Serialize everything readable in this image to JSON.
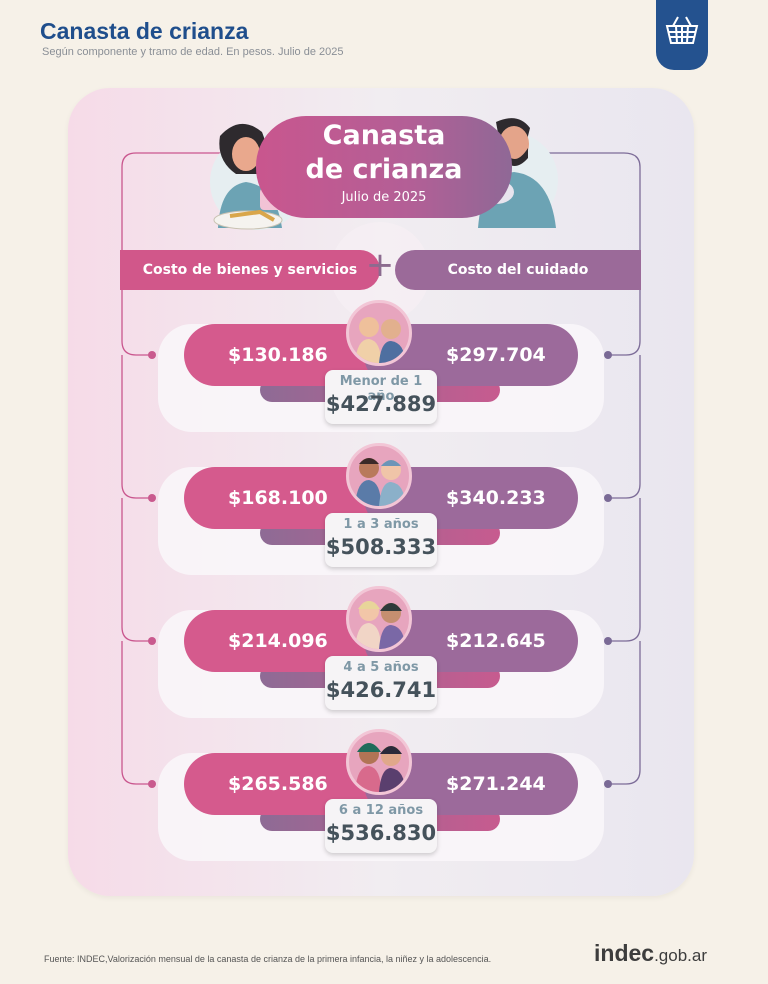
{
  "header": {
    "title": "Canasta de crianza",
    "subtitle": "Según componente y tramo de edad. En pesos. Julio de 2025",
    "logo_icon": "basket-icon"
  },
  "hero": {
    "title_line1": "Canasta",
    "title_line2": "de crianza",
    "date": "Julio de 2025"
  },
  "categories": {
    "left": "Costo de bienes y servicios",
    "operator": "+",
    "right": "Costo del cuidado"
  },
  "rows": [
    {
      "age": "Menor de 1 año",
      "goods": "$130.186",
      "care": "$297.704",
      "total": "$427.889"
    },
    {
      "age": "1 a 3 años",
      "goods": "$168.100",
      "care": "$340.233",
      "total": "$508.333"
    },
    {
      "age": "4 a 5 años",
      "goods": "$214.096",
      "care": "$212.645",
      "total": "$426.741"
    },
    {
      "age": "6 a 12 años",
      "goods": "$265.586",
      "care": "$271.244",
      "total": "$536.830"
    }
  ],
  "footer": {
    "source": "Fuente: INDEC,Valorización mensual de la canasta de crianza de la primera infancia, la niñez y la adolescencia.",
    "brand_main": "indec",
    "brand_suffix": ".gob.ar"
  },
  "colors": {
    "title_blue": "#1f4e8c",
    "goods_pink": "#d55a8d",
    "care_purple": "#9c6a9b"
  }
}
